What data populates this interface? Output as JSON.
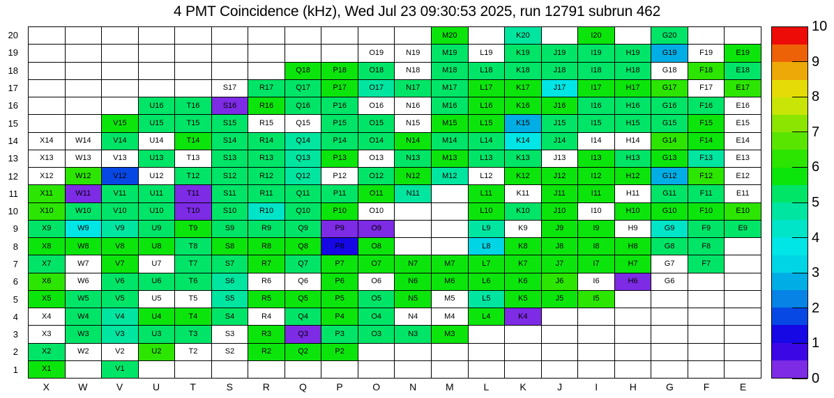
{
  "title": "4 PMT Coincidence (kHz), Wed Jul 23 09:30:53 2025, run 12791 subrun 462",
  "chart_data": {
    "type": "heatmap",
    "title": "4 PMT Coincidence (kHz), Wed Jul 23 09:30:53 2025, run 12791 subrun 462",
    "grid": "on",
    "value_unit": "kHz",
    "columns": [
      "X",
      "W",
      "V",
      "U",
      "T",
      "S",
      "R",
      "Q",
      "P",
      "O",
      "N",
      "M",
      "L",
      "K",
      "J",
      "I",
      "H",
      "G",
      "F",
      "E"
    ],
    "rows": [
      "20",
      "19",
      "18",
      "17",
      "16",
      "15",
      "14",
      "13",
      "12",
      "11",
      "10",
      "9",
      "8",
      "7",
      "6",
      "5",
      "4",
      "3",
      "2",
      "1"
    ],
    "colorbar": {
      "min": 0,
      "max": 10,
      "position": "right",
      "ticks": [
        "0",
        "1",
        "2",
        "3",
        "4",
        "5",
        "6",
        "7",
        "8",
        "9",
        "10"
      ]
    },
    "palette": [
      "#7D2BE5",
      "#3C07E5",
      "#1607E5",
      "#0748E5",
      "#0782E5",
      "#00AEE5",
      "#00D5E5",
      "#00E5E5",
      "#00E5C8",
      "#00E5A0",
      "#00E567",
      "#0CE50C",
      "#2CE500",
      "#5AE500",
      "#8CE500",
      "#C8E507",
      "#E5DC07",
      "#EDA907",
      "#ED6207",
      "#ED0C07"
    ],
    "cells": [
      [
        0,
        0,
        0,
        0,
        0,
        0,
        0,
        0,
        0,
        0,
        0,
        [
          "M20",
          5.7
        ],
        0,
        [
          "K20",
          4.7
        ],
        0,
        [
          "I20",
          5.7
        ],
        0,
        [
          "G20",
          5.2
        ],
        0,
        0
      ],
      [
        0,
        0,
        0,
        0,
        0,
        0,
        0,
        0,
        0,
        "O19",
        "N19",
        [
          "M19",
          5.2
        ],
        "L19",
        [
          "K19",
          5.2
        ],
        [
          "J19",
          5.2
        ],
        [
          "I19",
          5.2
        ],
        [
          "H19",
          5.2
        ],
        [
          "G19",
          2.7
        ],
        "F19",
        [
          "E19",
          5.7
        ]
      ],
      [
        0,
        0,
        0,
        0,
        0,
        0,
        0,
        [
          "Q18",
          5.7
        ],
        [
          "P18",
          5.7
        ],
        [
          "O18",
          5.2
        ],
        "N18",
        [
          "M18",
          5.2
        ],
        [
          "L18",
          5.2
        ],
        [
          "K18",
          5.2
        ],
        [
          "J18",
          5.2
        ],
        [
          "I18",
          5.2
        ],
        [
          "H18",
          5.2
        ],
        "G18",
        [
          "F18",
          6.2
        ],
        [
          "E18",
          5.2
        ]
      ],
      [
        0,
        0,
        0,
        0,
        0,
        "S17",
        [
          "R17",
          5.2
        ],
        [
          "Q17",
          5.2
        ],
        [
          "P17",
          5.7
        ],
        [
          "O17",
          4.7
        ],
        [
          "N17",
          5.2
        ],
        [
          "M17",
          5.2
        ],
        [
          "L17",
          5.7
        ],
        [
          "K17",
          5.7
        ],
        [
          "J17",
          3.7
        ],
        [
          "I17",
          5.7
        ],
        [
          "H17",
          5.7
        ],
        [
          "G17",
          6.2
        ],
        "F17",
        [
          "E17",
          6.2
        ]
      ],
      [
        0,
        0,
        0,
        [
          "U16",
          5.2
        ],
        [
          "T16",
          5.2
        ],
        [
          "S16",
          0.2
        ],
        [
          "R16",
          5.7
        ],
        [
          "Q16",
          5.2
        ],
        [
          "P16",
          5.2
        ],
        "O16",
        "N16",
        [
          "M16",
          5.2
        ],
        [
          "L16",
          5.7
        ],
        [
          "K16",
          5.7
        ],
        [
          "J16",
          5.7
        ],
        [
          "I16",
          5.2
        ],
        [
          "H16",
          5.2
        ],
        [
          "G16",
          5.2
        ],
        [
          "F16",
          5.2
        ],
        "E16"
      ],
      [
        0,
        0,
        [
          "V15",
          5.7
        ],
        [
          "U15",
          5.2
        ],
        [
          "T15",
          5.2
        ],
        [
          "S15",
          5.2
        ],
        "R15",
        "Q15",
        [
          "P15",
          5.2
        ],
        [
          "O15",
          5.2
        ],
        "N15",
        [
          "M15",
          5.7
        ],
        [
          "L15",
          5.7
        ],
        [
          "K15",
          2.7
        ],
        [
          "J15",
          5.2
        ],
        [
          "I15",
          5.2
        ],
        [
          "H15",
          5.2
        ],
        [
          "G15",
          5.2
        ],
        [
          "F15",
          5.7
        ],
        "E15"
      ],
      [
        [
          "X14",
          0
        ],
        "W14",
        [
          "V14",
          5.2
        ],
        "U14",
        [
          "T14",
          5.7
        ],
        [
          "S14",
          5.2
        ],
        [
          "R14",
          5.2
        ],
        [
          "Q14",
          4.7
        ],
        [
          "P14",
          5.2
        ],
        [
          "O14",
          5.2
        ],
        [
          "N14",
          5.7
        ],
        [
          "M14",
          5.2
        ],
        [
          "L14",
          5.2
        ],
        [
          "K14",
          3.7
        ],
        [
          "J14",
          5.2
        ],
        "I14",
        "H14",
        [
          "G14",
          6.2
        ],
        [
          "F14",
          5.7
        ],
        "E14"
      ],
      [
        "X13",
        "W13",
        "V13",
        [
          "U13",
          5.2
        ],
        "T13",
        [
          "S13",
          5.2
        ],
        [
          "R13",
          5.2
        ],
        [
          "Q13",
          4.7
        ],
        [
          "P13",
          5.7
        ],
        "O13",
        [
          "N13",
          5.2
        ],
        [
          "M13",
          5.7
        ],
        [
          "L13",
          5.2
        ],
        [
          "K13",
          5.2
        ],
        "J13",
        [
          "I13",
          5.7
        ],
        [
          "H13",
          5.2
        ],
        [
          "G13",
          5.7
        ],
        [
          "F13",
          4.7
        ],
        "E13"
      ],
      [
        "X12",
        [
          "W12",
          6.2
        ],
        [
          "V12",
          1.7
        ],
        "U12",
        [
          "T12",
          5.2
        ],
        [
          "S12",
          5.2
        ],
        [
          "R12",
          5.2
        ],
        [
          "Q12",
          4.7
        ],
        "P12",
        [
          "O12",
          5.2
        ],
        [
          "N12",
          5.7
        ],
        [
          "M12",
          4.7
        ],
        "L12",
        [
          "K12",
          5.7
        ],
        [
          "J12",
          5.7
        ],
        [
          "I12",
          5.7
        ],
        [
          "H12",
          5.7
        ],
        [
          "G12",
          2.7
        ],
        [
          "F12",
          6.2
        ],
        "E12"
      ],
      [
        [
          "X11",
          6.2
        ],
        [
          "W11",
          0.2
        ],
        [
          "V11",
          5.2
        ],
        [
          "U11",
          5.2
        ],
        [
          "T11",
          0.2
        ],
        [
          "S11",
          5.2
        ],
        [
          "R11",
          5.2
        ],
        [
          "Q11",
          5.2
        ],
        [
          "P11",
          5.2
        ],
        [
          "O11",
          5.7
        ],
        [
          "N11",
          4.7
        ],
        0,
        [
          "L11",
          5.7
        ],
        "K11",
        [
          "J11",
          5.7
        ],
        [
          "I11",
          5.7
        ],
        "H11",
        [
          "G11",
          5.2
        ],
        [
          "F11",
          5.2
        ],
        "E11"
      ],
      [
        [
          "X10",
          6.2
        ],
        [
          "W10",
          5.2
        ],
        [
          "V10",
          5.2
        ],
        [
          "U10",
          5.2
        ],
        [
          "T10",
          0.2
        ],
        [
          "S10",
          5.2
        ],
        [
          "R10",
          4.2
        ],
        [
          "Q10",
          5.2
        ],
        [
          "P10",
          5.7
        ],
        "O10",
        0,
        0,
        [
          "L10",
          5.7
        ],
        [
          "K10",
          5.2
        ],
        [
          "J10",
          5.7
        ],
        "I10",
        [
          "H10",
          5.7
        ],
        [
          "G10",
          5.7
        ],
        [
          "F10",
          5.7
        ],
        [
          "E10",
          6.2
        ]
      ],
      [
        [
          "X9",
          5.2
        ],
        [
          "W9",
          3.7
        ],
        [
          "V9",
          4.7
        ],
        [
          "U9",
          5.2
        ],
        [
          "T9",
          5.7
        ],
        [
          "S9",
          5.2
        ],
        [
          "R9",
          5.2
        ],
        [
          "Q9",
          5.2
        ],
        [
          "P9",
          0.2
        ],
        [
          "O9",
          0.2
        ],
        0,
        0,
        [
          "L9",
          4.7
        ],
        "K9",
        [
          "J9",
          5.7
        ],
        [
          "I9",
          5.7
        ],
        "H9",
        [
          "G9",
          4.2
        ],
        [
          "F9",
          5.2
        ],
        [
          "E9",
          5.2
        ]
      ],
      [
        [
          "X8",
          5.7
        ],
        [
          "W8",
          5.7
        ],
        [
          "V8",
          5.7
        ],
        [
          "U8",
          5.7
        ],
        [
          "T8",
          5.2
        ],
        [
          "S8",
          5.7
        ],
        [
          "R8",
          5.7
        ],
        [
          "Q8",
          5.7
        ],
        [
          "P8",
          1.2
        ],
        [
          "O8",
          5.7
        ],
        0,
        0,
        [
          "L8",
          3.2
        ],
        [
          "K8",
          5.7
        ],
        [
          "J8",
          5.7
        ],
        [
          "I8",
          5.7
        ],
        [
          "H8",
          5.7
        ],
        [
          "G8",
          5.2
        ],
        [
          "F8",
          5.2
        ],
        0
      ],
      [
        [
          "X7",
          5.2
        ],
        "W7",
        [
          "V7",
          5.7
        ],
        "U7",
        [
          "T7",
          5.2
        ],
        [
          "S7",
          5.2
        ],
        [
          "R7",
          5.7
        ],
        [
          "Q7",
          5.2
        ],
        [
          "P7",
          5.7
        ],
        [
          "O7",
          5.7
        ],
        [
          "N7",
          5.7
        ],
        [
          "M7",
          5.7
        ],
        [
          "L7",
          5.7
        ],
        [
          "K7",
          5.7
        ],
        [
          "J7",
          5.7
        ],
        [
          "I7",
          5.7
        ],
        [
          "H7",
          5.7
        ],
        "G7",
        [
          "F7",
          5.2
        ],
        0
      ],
      [
        [
          "X6",
          6.2
        ],
        "W6",
        [
          "V6",
          5.2
        ],
        [
          "U6",
          5.2
        ],
        [
          "T6",
          5.2
        ],
        [
          "S6",
          4.7
        ],
        "R6",
        "Q6",
        [
          "P6",
          5.7
        ],
        "O6",
        [
          "N6",
          5.7
        ],
        [
          "M6",
          5.7
        ],
        [
          "L6",
          5.7
        ],
        [
          "K6",
          5.7
        ],
        [
          "J6",
          6.2
        ],
        "I6",
        [
          "H6",
          0.2
        ],
        "G6",
        0,
        0
      ],
      [
        [
          "X5",
          5.7
        ],
        [
          "W5",
          5.2
        ],
        [
          "V5",
          5.2
        ],
        "U5",
        "T5",
        [
          "S5",
          4.7
        ],
        [
          "R5",
          5.7
        ],
        [
          "Q5",
          5.7
        ],
        [
          "P5",
          5.7
        ],
        [
          "O5",
          5.2
        ],
        [
          "N5",
          5.7
        ],
        "M5",
        [
          "L5",
          4.7
        ],
        [
          "K5",
          5.7
        ],
        [
          "J5",
          5.7
        ],
        [
          "I5",
          6.2
        ],
        0,
        0,
        0,
        0
      ],
      [
        "X4",
        [
          "W4",
          5.2
        ],
        [
          "V4",
          4.7
        ],
        [
          "U4",
          5.7
        ],
        [
          "T4",
          5.7
        ],
        [
          "S4",
          5.2
        ],
        "R4",
        [
          "Q4",
          5.2
        ],
        [
          "P4",
          5.7
        ],
        [
          "O4",
          5.2
        ],
        "N4",
        "M4",
        [
          "L4",
          5.7
        ],
        [
          "K4",
          0.2
        ],
        0,
        0,
        0,
        0,
        0,
        0
      ],
      [
        "X3",
        [
          "W3",
          5.2
        ],
        [
          "V3",
          4.7
        ],
        [
          "U3",
          5.2
        ],
        [
          "T3",
          5.2
        ],
        "S3",
        [
          "R3",
          5.7
        ],
        [
          "Q3",
          0.2
        ],
        [
          "P3",
          5.2
        ],
        [
          "O3",
          5.2
        ],
        [
          "N3",
          5.2
        ],
        [
          "M3",
          5.7
        ],
        0,
        0,
        0,
        0,
        0,
        0,
        0,
        0
      ],
      [
        [
          "X2",
          5.2
        ],
        "W2",
        "V2",
        [
          "U2",
          6.2
        ],
        "T2",
        "S2",
        [
          "R2",
          5.7
        ],
        [
          "Q2",
          5.7
        ],
        [
          "P2",
          5.7
        ],
        0,
        0,
        0,
        0,
        0,
        0,
        0,
        0,
        0,
        0,
        0
      ],
      [
        [
          "X1",
          5.7
        ],
        0,
        [
          "V1",
          5.2
        ],
        0,
        0,
        0,
        0,
        0,
        0,
        0,
        0,
        0,
        0,
        0,
        0,
        0,
        0,
        0,
        0,
        0
      ]
    ]
  }
}
